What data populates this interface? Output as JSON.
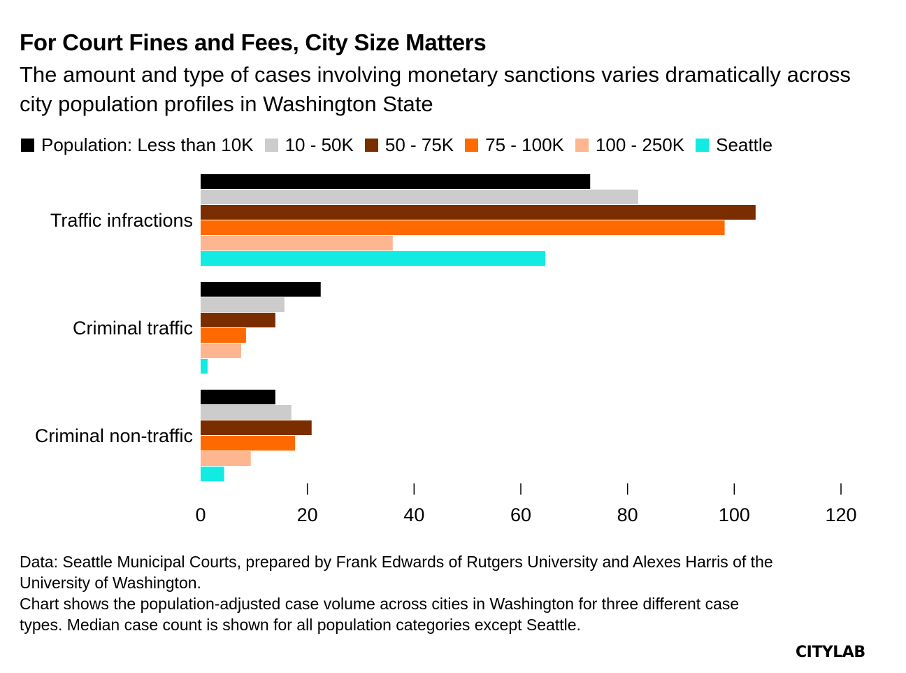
{
  "header": {
    "title": "For Court Fines and Fees, City Size Matters",
    "subtitle": "The amount and type of cases involving monetary sanctions varies dramatically across city population profiles in Washington State"
  },
  "colors": {
    "less_than_10k": "#000000",
    "10_50k": "#cccccc",
    "50_75k": "#7a2e00",
    "75_100k": "#ff6a00",
    "100_250k": "#fdb68f",
    "seattle": "#11ebe2"
  },
  "chart_data": {
    "type": "bar",
    "orientation": "horizontal",
    "categories": [
      "Traffic infractions",
      "Criminal traffic",
      "Criminal non-traffic"
    ],
    "series": [
      {
        "name": "Population: Less than 10K",
        "color": "#000000",
        "values": [
          73,
          22.5,
          14
        ]
      },
      {
        "name": "10 - 50K",
        "color": "#cccccc",
        "values": [
          82,
          15.7,
          17
        ]
      },
      {
        "name": "50 - 75K",
        "color": "#7a2e00",
        "values": [
          104,
          14,
          20.8
        ]
      },
      {
        "name": "75 - 100K",
        "color": "#ff6a00",
        "values": [
          98.2,
          8.5,
          17.7
        ]
      },
      {
        "name": "100 - 250K",
        "color": "#fdb68f",
        "values": [
          36,
          7.6,
          9.4
        ]
      },
      {
        "name": "Seattle",
        "color": "#11ebe2",
        "values": [
          64.6,
          1.3,
          4.4
        ]
      }
    ],
    "xlim": [
      0,
      120
    ],
    "xticks": [
      "0",
      "20",
      "40",
      "60",
      "80",
      "100",
      "120"
    ],
    "xlabel": "",
    "ylabel": "",
    "legend": "top",
    "grid": false
  },
  "footer": {
    "source_line1": "Data: Seattle Municipal Courts, prepared by Frank Edwards of Rutgers University and Alexes Harris of the University of Washington.",
    "source_line2": "Chart shows the population-adjusted case volume across cities in Washington for three different case types. Median case count is shown for all population categories except Seattle.",
    "logo": "CITYLAB"
  }
}
